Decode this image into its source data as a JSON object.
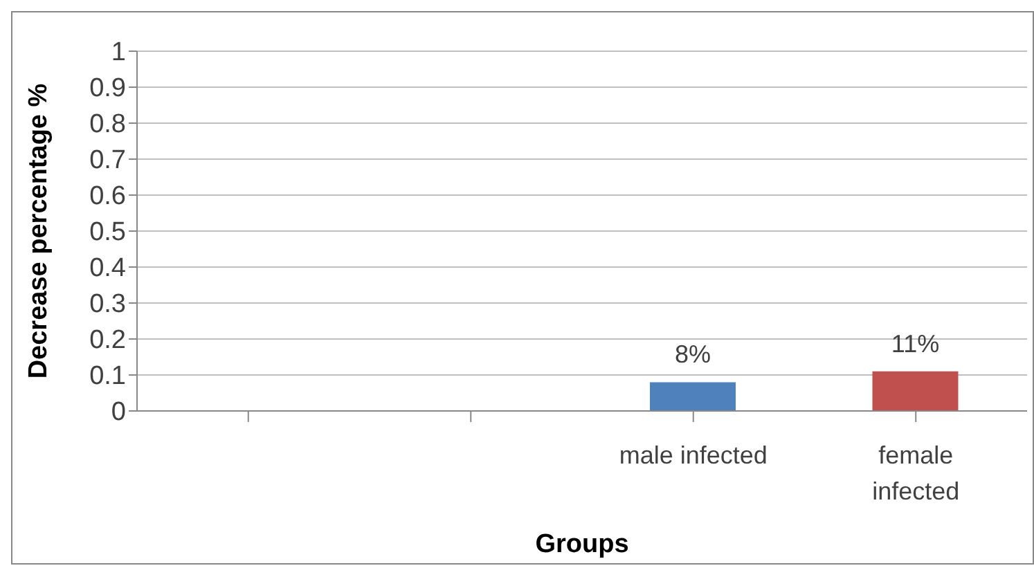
{
  "chart_data": {
    "type": "bar",
    "xlabel": "Groups",
    "ylabel": "Decrease percentage %",
    "categories": [
      null,
      null,
      "male infected",
      "female infected"
    ],
    "values": [
      null,
      null,
      0.08,
      0.11
    ],
    "colors": [
      "#4f81bd",
      "#4f81bd",
      "#4f81bd",
      "#c0504d"
    ],
    "value_labels": [
      null,
      null,
      "8%",
      "11%"
    ],
    "ylim": [
      0,
      1
    ],
    "yticks": [
      0,
      0.1,
      0.2,
      0.3,
      0.4,
      0.5,
      0.6,
      0.7,
      0.8,
      0.9,
      1
    ],
    "grid": "y",
    "legend": false
  }
}
